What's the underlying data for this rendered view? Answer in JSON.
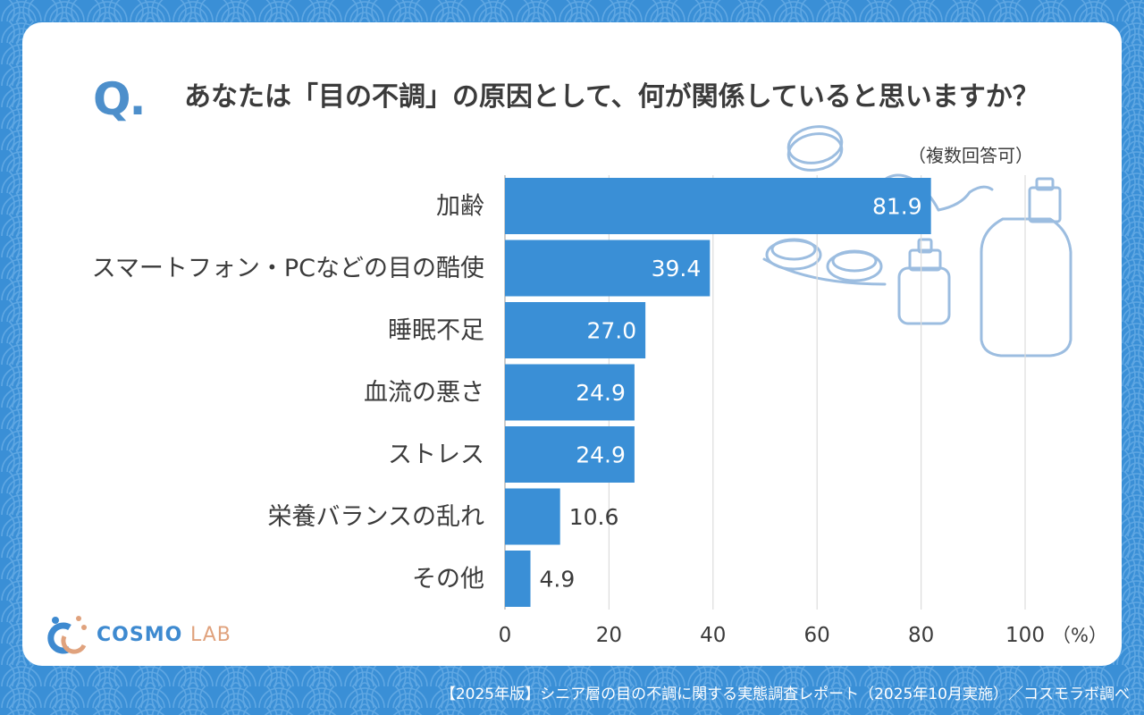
{
  "question": {
    "mark": "Q.",
    "text": "あなたは「目の不調」の原因として、何が関係していると思いますか？",
    "note": "（複数回答可）"
  },
  "chart_data": {
    "type": "bar",
    "orientation": "horizontal",
    "title": "あなたは「目の不調」の原因として、何が関係していると思いますか？",
    "categories": [
      "加齢",
      "スマートフォン・PCなどの目の酷使",
      "睡眠不足",
      "血流の悪さ",
      "ストレス",
      "栄養バランスの乱れ",
      "その他"
    ],
    "values": [
      81.9,
      39.4,
      27.0,
      24.9,
      24.9,
      10.6,
      4.9
    ],
    "value_labels": [
      "81.9",
      "39.4",
      "27.0",
      "24.9",
      "24.9",
      "10.6",
      "4.9"
    ],
    "xlim": [
      0,
      100
    ],
    "xticks": [
      "0",
      "20",
      "40",
      "60",
      "80",
      "100"
    ],
    "xunit": "（%）",
    "grid": true,
    "bar_color": "#3a8fd6"
  },
  "logo": {
    "main": "COSMO",
    "sub": "LAB"
  },
  "footer": "【2025年版】シニア層の目の不調に関する実態調査レポート（2025年10月実施）／コスモラボ調べ"
}
